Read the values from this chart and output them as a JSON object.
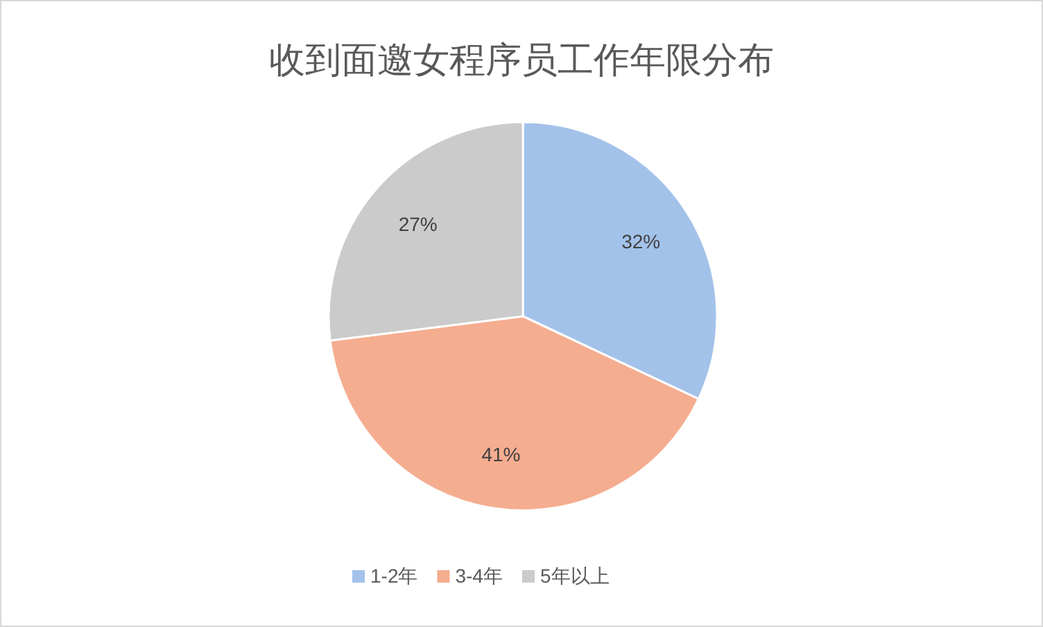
{
  "chart_data": {
    "type": "pie",
    "title": "收到面邀女程序员工作年限分布",
    "categories": [
      "1-2年",
      "3-4年",
      "5年以上"
    ],
    "values": [
      32,
      41,
      27
    ],
    "colors": [
      "#a3c2ea",
      "#f5ad90",
      "#cbcbcb"
    ],
    "value_labels": [
      "32%",
      "41%",
      "27%"
    ],
    "legend": "bottom"
  }
}
